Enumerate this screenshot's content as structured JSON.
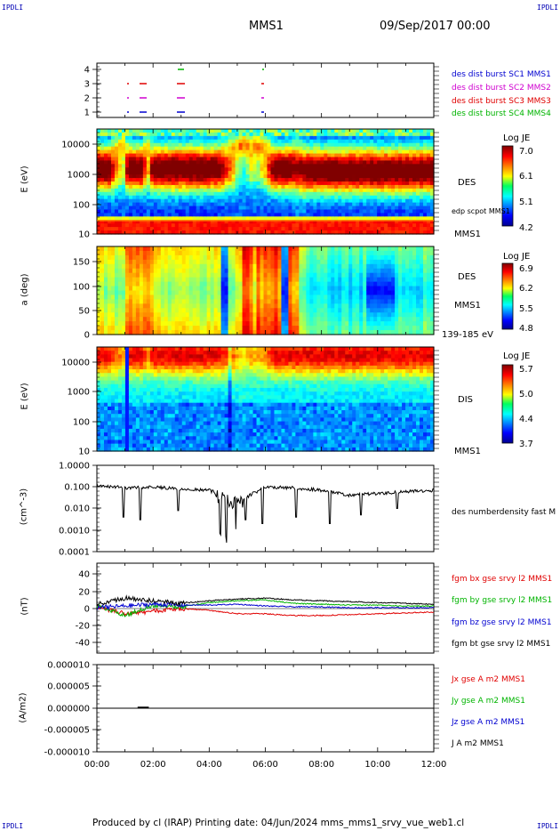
{
  "corners": {
    "tl": "IPDLI",
    "tr": "IPDLI",
    "bl": "IPDLI",
    "br": "IPDLI"
  },
  "header": {
    "mission": "MMS1",
    "date": "09/Sep/2017 00:00"
  },
  "footer": "Produced by cl (IRAP)   Printing date: 04/Jun/2024   mms_mms1_srvy_vue_web1.cl",
  "x_ticks": [
    "00:00",
    "02:00",
    "04:00",
    "06:00",
    "08:00",
    "10:00",
    "12:00"
  ],
  "colors": {
    "red": "#e00000",
    "green": "#00b400",
    "blue": "#0000d0",
    "magenta": "#d000d0",
    "black": "#000000"
  },
  "panel1": {
    "y_ticks": [
      "4",
      "3",
      "2",
      "1"
    ],
    "legend": [
      {
        "text": "des dist burst SC1 MMS1",
        "color": "#0000d0"
      },
      {
        "text": "des dist burst SC2 MMS2",
        "color": "#d000d0"
      },
      {
        "text": "des dist burst SC3 MMS3",
        "color": "#e00000"
      },
      {
        "text": "des dist burst SC4 MMS4",
        "color": "#00b400"
      }
    ]
  },
  "panel2": {
    "ylabel": "E (eV)",
    "y_ticks": [
      "10000",
      "1000",
      "100",
      "10"
    ],
    "side": [
      "DES",
      "edp scpot MMS1",
      "MMS1"
    ],
    "colorbar": {
      "title": "Log JE",
      "ticks": [
        "7.0",
        "6.1",
        "5.1",
        "4.2"
      ]
    }
  },
  "panel3": {
    "ylabel": "a (deg)",
    "y_ticks": [
      "150",
      "100",
      "50",
      "0"
    ],
    "side": [
      "DES",
      "MMS1",
      "139-185 eV"
    ],
    "colorbar": {
      "title": "Log JE",
      "ticks": [
        "6.9",
        "6.2",
        "5.5",
        "4.8"
      ]
    }
  },
  "panel4": {
    "ylabel": "E (eV)",
    "y_ticks": [
      "10000",
      "1000",
      "100",
      "10"
    ],
    "side": [
      "DIS",
      "MMS1"
    ],
    "colorbar": {
      "title": "Log JE",
      "ticks": [
        "5.7",
        "5.0",
        "4.4",
        "3.7"
      ]
    }
  },
  "panel5": {
    "ylabel": "(cm^-3)",
    "y_ticks": [
      "1.0000",
      "0.100",
      "0.010",
      "0.0010",
      "0.0001"
    ],
    "legend": "des numberdensity fast M"
  },
  "panel6": {
    "ylabel": "(nT)",
    "y_ticks": [
      "40",
      "20",
      "0",
      "-20",
      "-40"
    ],
    "legend": [
      {
        "text": "fgm bx gse srvy l2 MMS1",
        "color": "#e00000"
      },
      {
        "text": "fgm by gse srvy l2 MMS1",
        "color": "#00b400"
      },
      {
        "text": "fgm bz gse srvy l2 MMS1",
        "color": "#0000d0"
      },
      {
        "text": "fgm bt gse srvy l2 MMS1",
        "color": "#000000"
      }
    ]
  },
  "panel7": {
    "ylabel": "(A/m2)",
    "y_ticks": [
      "0.000010",
      "0.000005",
      "0.000000",
      "-0.000005",
      "-0.000010"
    ],
    "legend": [
      {
        "text": "Jx gse A m2 MMS1",
        "color": "#e00000"
      },
      {
        "text": "Jy gse A m2 MMS1",
        "color": "#00b400"
      },
      {
        "text": "Jz gse A m2 MMS1",
        "color": "#0000d0"
      },
      {
        "text": "J A m2 MMS1",
        "color": "#000000"
      }
    ]
  },
  "chart_data": [
    {
      "type": "line",
      "x": [
        "00:00",
        "01:00",
        "02:00",
        "03:00",
        "04:00",
        "05:00",
        "06:00",
        "07:00",
        "08:00",
        "09:00",
        "10:00",
        "11:00",
        "12:00"
      ],
      "series": [
        {
          "name": "des numberdensity fast M",
          "values": [
            0.12,
            0.09,
            0.1,
            0.08,
            0.07,
            0.02,
            0.1,
            0.09,
            0.07,
            0.04,
            0.05,
            0.06,
            0.07
          ]
        }
      ],
      "ylim": [
        0.0001,
        1.0
      ],
      "log_y": true
    },
    {
      "type": "line",
      "x": [
        "00:00",
        "01:00",
        "02:00",
        "03:00",
        "04:00",
        "05:00",
        "06:00",
        "07:00",
        "08:00",
        "09:00",
        "10:00",
        "11:00",
        "12:00"
      ],
      "series": [
        {
          "name": "fgm bx gse srvy l2 MMS1",
          "values": [
            2,
            -6,
            -3,
            0,
            -2,
            -6,
            -6,
            -8,
            -8,
            -7,
            -6,
            -5,
            -4
          ]
        },
        {
          "name": "fgm by gse srvy l2 MMS1",
          "values": [
            3,
            -8,
            4,
            2,
            7,
            9,
            10,
            6,
            5,
            4,
            4,
            3,
            3
          ]
        },
        {
          "name": "fgm bz gse srvy l2 MMS1",
          "values": [
            1,
            3,
            5,
            4,
            4,
            5,
            3,
            2,
            2,
            1,
            1,
            1,
            1
          ]
        },
        {
          "name": "fgm bt gse srvy l2 MMS1",
          "values": [
            5,
            12,
            9,
            6,
            9,
            11,
            12,
            10,
            9,
            8,
            7,
            6,
            5
          ]
        }
      ],
      "ylim": [
        -50,
        50
      ]
    },
    {
      "type": "line",
      "x": [
        "00:00",
        "02:00",
        "04:00",
        "06:00",
        "08:00",
        "10:00",
        "12:00"
      ],
      "series": [
        {
          "name": "J A m2 MMS1",
          "values": [
            0,
            0,
            0,
            0,
            0,
            0,
            0
          ]
        }
      ],
      "ylim": [
        -1e-05,
        1e-05
      ]
    }
  ]
}
